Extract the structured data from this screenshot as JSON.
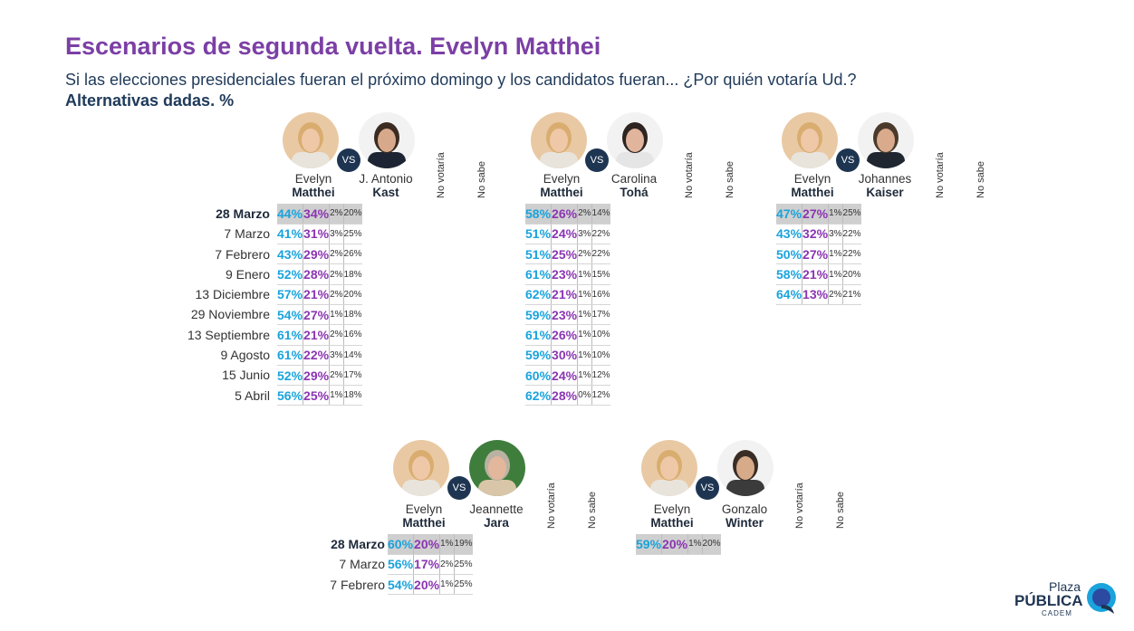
{
  "title": "Escenarios de segunda vuelta. Evelyn Matthei",
  "subtitle": "Si las elecciones presidenciales fueran el próximo domingo y los candidatos fueran... ¿Por quién votaría Ud.?",
  "subtitle2": "Alternativas dadas. %",
  "vs_label": "VS",
  "col_no_votaria": "No votaría",
  "col_no_sabe": "No sabe",
  "logo": {
    "line1": "Plaza",
    "line2": "PÚBLICA",
    "line3": "CADEM"
  },
  "colors": {
    "matthei": "#1aa3dc",
    "rival": "#8b35b2",
    "title": "#7b3fa5",
    "header_row": "#cfcfcf"
  },
  "chart_data": [
    {
      "type": "table",
      "c1": {
        "first": "Evelyn",
        "last": "Matthei"
      },
      "c2": {
        "first": "J. Antonio",
        "last": "Kast"
      },
      "dates": [
        "28 Marzo",
        "7 Marzo",
        "7 Febrero",
        "9 Enero",
        "13 Diciembre",
        "29 Noviembre",
        "13 Septiembre",
        "9 Agosto",
        "15 Junio",
        "5 Abril"
      ],
      "rows": [
        [
          "44%",
          "34%",
          "2%",
          "20%"
        ],
        [
          "41%",
          "31%",
          "3%",
          "25%"
        ],
        [
          "43%",
          "29%",
          "2%",
          "26%"
        ],
        [
          "52%",
          "28%",
          "2%",
          "18%"
        ],
        [
          "57%",
          "21%",
          "2%",
          "20%"
        ],
        [
          "54%",
          "27%",
          "1%",
          "18%"
        ],
        [
          "61%",
          "21%",
          "2%",
          "16%"
        ],
        [
          "61%",
          "22%",
          "3%",
          "14%"
        ],
        [
          "52%",
          "29%",
          "2%",
          "17%"
        ],
        [
          "56%",
          "25%",
          "1%",
          "18%"
        ]
      ]
    },
    {
      "type": "table",
      "c1": {
        "first": "Evelyn",
        "last": "Matthei"
      },
      "c2": {
        "first": "Carolina",
        "last": "Tohá"
      },
      "rows": [
        [
          "58%",
          "26%",
          "2%",
          "14%"
        ],
        [
          "51%",
          "24%",
          "3%",
          "22%"
        ],
        [
          "51%",
          "25%",
          "2%",
          "22%"
        ],
        [
          "61%",
          "23%",
          "1%",
          "15%"
        ],
        [
          "62%",
          "21%",
          "1%",
          "16%"
        ],
        [
          "59%",
          "23%",
          "1%",
          "17%"
        ],
        [
          "61%",
          "26%",
          "1%",
          "10%"
        ],
        [
          "59%",
          "30%",
          "1%",
          "10%"
        ],
        [
          "60%",
          "24%",
          "1%",
          "12%"
        ],
        [
          "62%",
          "28%",
          "0%",
          "12%"
        ]
      ]
    },
    {
      "type": "table",
      "c1": {
        "first": "Evelyn",
        "last": "Matthei"
      },
      "c2": {
        "first": "Johannes",
        "last": "Kaiser"
      },
      "rows": [
        [
          "47%",
          "27%",
          "1%",
          "25%"
        ],
        [
          "43%",
          "32%",
          "3%",
          "22%"
        ],
        [
          "50%",
          "27%",
          "1%",
          "22%"
        ],
        [
          "58%",
          "21%",
          "1%",
          "20%"
        ],
        [
          "64%",
          "13%",
          "2%",
          "21%"
        ]
      ]
    },
    {
      "type": "table",
      "c1": {
        "first": "Evelyn",
        "last": "Matthei"
      },
      "c2": {
        "first": "Jeannette",
        "last": "Jara"
      },
      "dates": [
        "28 Marzo",
        "7 Marzo",
        "7 Febrero"
      ],
      "rows": [
        [
          "60%",
          "20%",
          "1%",
          "19%"
        ],
        [
          "56%",
          "17%",
          "2%",
          "25%"
        ],
        [
          "54%",
          "20%",
          "1%",
          "25%"
        ]
      ]
    },
    {
      "type": "table",
      "c1": {
        "first": "Evelyn",
        "last": "Matthei"
      },
      "c2": {
        "first": "Gonzalo",
        "last": "Winter"
      },
      "rows": [
        [
          "59%",
          "20%",
          "1%",
          "20%"
        ]
      ]
    }
  ]
}
